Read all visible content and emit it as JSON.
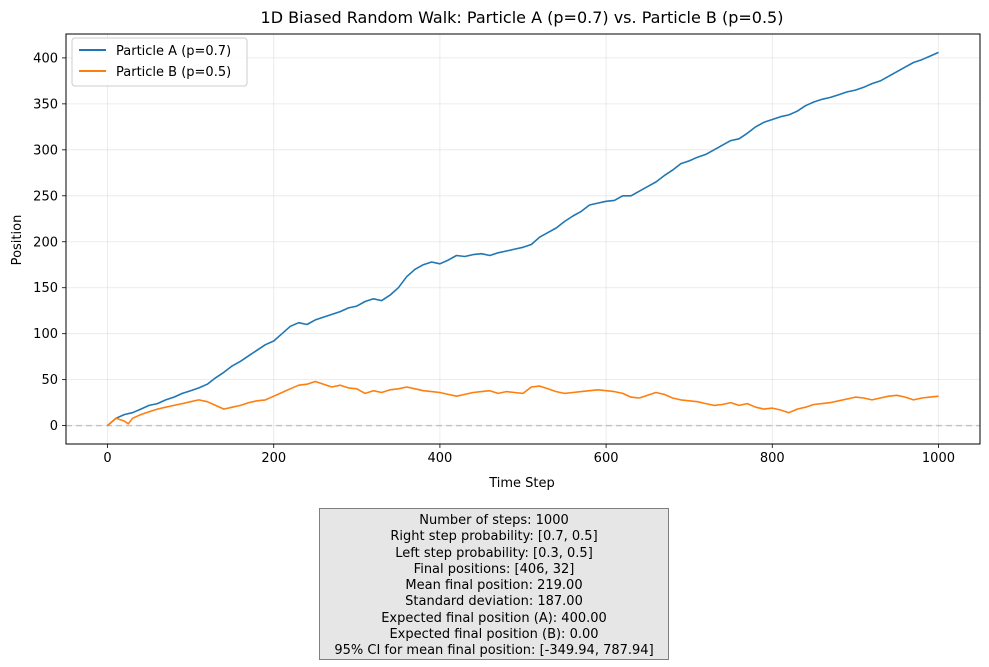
{
  "chart_data": {
    "type": "line",
    "title": "1D Biased Random Walk: Particle A (p=0.7) vs. Particle B (p=0.5)",
    "xlabel": "Time Step",
    "ylabel": "Position",
    "xlim": [
      -50,
      1050
    ],
    "ylim": [
      -20,
      426
    ],
    "xticks": [
      0,
      200,
      400,
      600,
      800,
      1000
    ],
    "yticks": [
      0,
      50,
      100,
      150,
      200,
      250,
      300,
      350,
      400
    ],
    "grid": true,
    "legend_position": "upper-left",
    "reference_line_y": 0,
    "series": [
      {
        "name": "Particle A (p=0.7)",
        "color": "#1f77b4",
        "x": [
          0,
          10,
          20,
          30,
          40,
          50,
          60,
          70,
          80,
          90,
          100,
          110,
          120,
          130,
          140,
          150,
          160,
          170,
          180,
          190,
          200,
          210,
          220,
          230,
          240,
          250,
          260,
          270,
          280,
          290,
          300,
          310,
          320,
          330,
          340,
          350,
          360,
          370,
          380,
          390,
          400,
          410,
          420,
          430,
          440,
          450,
          460,
          470,
          480,
          490,
          500,
          510,
          520,
          530,
          540,
          550,
          560,
          570,
          580,
          590,
          600,
          610,
          620,
          630,
          640,
          650,
          660,
          670,
          680,
          690,
          700,
          710,
          720,
          730,
          740,
          750,
          760,
          770,
          780,
          790,
          800,
          810,
          820,
          830,
          840,
          850,
          860,
          870,
          880,
          890,
          900,
          910,
          920,
          930,
          940,
          950,
          960,
          970,
          980,
          990,
          1000
        ],
        "y": [
          0,
          8,
          12,
          14,
          18,
          22,
          24,
          28,
          31,
          35,
          38,
          41,
          45,
          52,
          58,
          65,
          70,
          76,
          82,
          88,
          92,
          100,
          108,
          112,
          110,
          115,
          118,
          121,
          124,
          128,
          130,
          135,
          138,
          136,
          142,
          150,
          162,
          170,
          175,
          178,
          176,
          180,
          185,
          184,
          186,
          187,
          185,
          188,
          190,
          192,
          194,
          197,
          205,
          210,
          215,
          222,
          228,
          233,
          240,
          242,
          244,
          245,
          250,
          250,
          255,
          260,
          265,
          272,
          278,
          285,
          288,
          292,
          295,
          300,
          305,
          310,
          312,
          318,
          325,
          330,
          333,
          336,
          338,
          342,
          348,
          352,
          355,
          357,
          360,
          363,
          365,
          368,
          372,
          375,
          380,
          385,
          390,
          395,
          398,
          402,
          406
        ]
      },
      {
        "name": "Particle B (p=0.5)",
        "color": "#ff7f0e",
        "x": [
          0,
          10,
          20,
          25,
          30,
          40,
          50,
          60,
          70,
          80,
          90,
          100,
          110,
          120,
          130,
          140,
          150,
          160,
          170,
          180,
          190,
          200,
          210,
          220,
          230,
          240,
          250,
          260,
          270,
          280,
          290,
          300,
          310,
          320,
          330,
          340,
          350,
          360,
          370,
          380,
          390,
          400,
          410,
          420,
          430,
          440,
          450,
          460,
          470,
          480,
          490,
          500,
          510,
          520,
          530,
          540,
          550,
          560,
          570,
          580,
          590,
          600,
          610,
          620,
          630,
          640,
          650,
          660,
          670,
          680,
          690,
          700,
          710,
          720,
          730,
          740,
          750,
          760,
          770,
          780,
          790,
          800,
          810,
          820,
          830,
          840,
          850,
          860,
          870,
          880,
          890,
          900,
          910,
          920,
          930,
          940,
          950,
          960,
          970,
          980,
          990,
          1000
        ],
        "y": [
          0,
          8,
          5,
          2,
          8,
          12,
          15,
          18,
          20,
          22,
          24,
          26,
          28,
          26,
          22,
          18,
          20,
          22,
          25,
          27,
          28,
          32,
          36,
          40,
          44,
          45,
          48,
          45,
          42,
          44,
          41,
          40,
          35,
          38,
          36,
          39,
          40,
          42,
          40,
          38,
          37,
          36,
          34,
          32,
          34,
          36,
          37,
          38,
          35,
          37,
          36,
          35,
          42,
          43,
          40,
          37,
          35,
          36,
          37,
          38,
          39,
          38,
          37,
          35,
          31,
          30,
          33,
          36,
          34,
          30,
          28,
          27,
          26,
          24,
          22,
          23,
          25,
          22,
          24,
          20,
          18,
          19,
          17,
          14,
          18,
          20,
          23,
          24,
          25,
          27,
          29,
          31,
          30,
          28,
          30,
          32,
          33,
          31,
          28,
          30,
          31,
          32
        ]
      }
    ]
  },
  "stats_box": {
    "lines": [
      "Number of steps: 1000",
      "Right step probability: [0.7, 0.5]",
      "Left step probability: [0.3, 0.5]",
      "Final positions: [406, 32]",
      "Mean final position: 219.00",
      "Standard deviation: 187.00",
      "Expected final position (A): 400.00",
      "Expected final position (B): 0.00",
      "95% CI for mean final position: [-349.94, 787.94]"
    ]
  }
}
